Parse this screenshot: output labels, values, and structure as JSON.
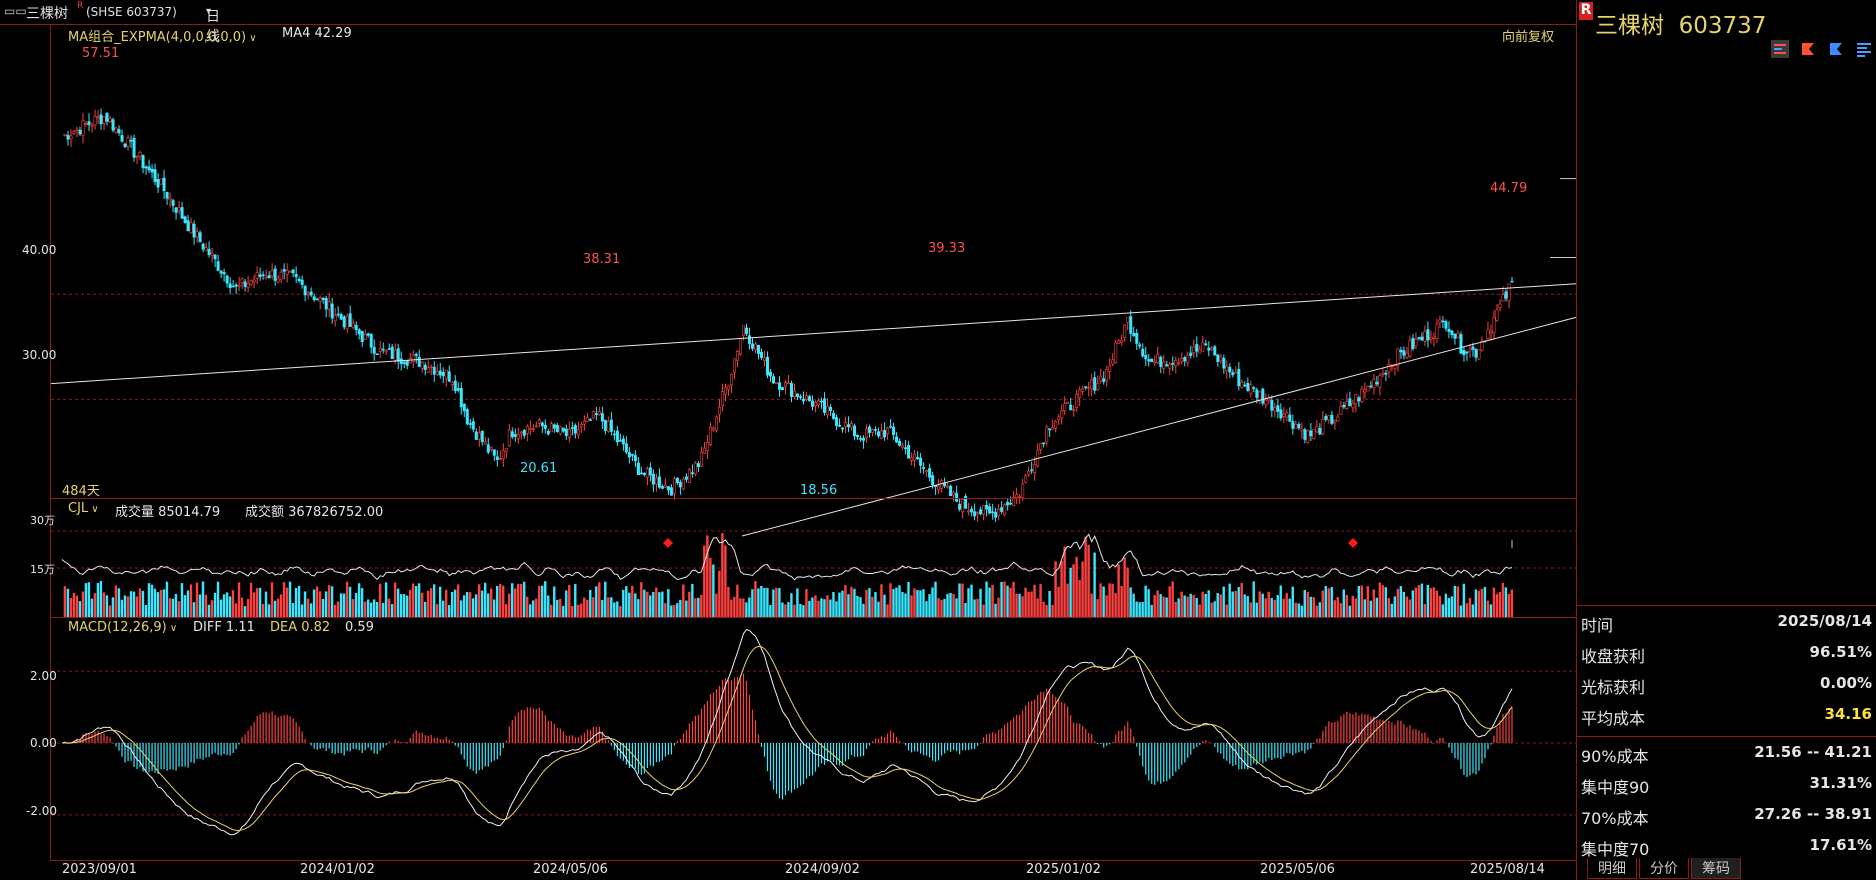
{
  "topbar": {
    "icon": "link-icon",
    "stock_name": "三棵树",
    "superscript": "R",
    "market_code": "(SHSE 603737)",
    "period": "日线"
  },
  "main": {
    "indicator_label": "MA组合_EXPMA(4,0,0,0,0,0)",
    "ma4_label": "MA4 42.29",
    "adjust_label": "向前复权",
    "days_label": "484天",
    "y_ticks": [
      "40.00",
      "30.00"
    ],
    "annotations": {
      "max": "57.51",
      "p1": "38.31",
      "p2": "39.33",
      "p3": "44.79",
      "low1": "20.61",
      "low2": "18.56"
    }
  },
  "volume": {
    "label": "CJL",
    "vol_label": "成交量 85014.79",
    "amount_label": "成交额 367826752.00",
    "y_ticks": [
      "30万",
      "15万"
    ]
  },
  "macd": {
    "label": "MACD(12,26,9)",
    "diff_label": "DIFF 1.11",
    "dea_label": "DEA 0.82",
    "macd_value": "0.59",
    "y_ticks": [
      "2.00",
      "0.00",
      "-2.00"
    ]
  },
  "x_axis": {
    "dates": [
      "2023/09/01",
      "2024/01/02",
      "2024/05/06",
      "2024/09/02",
      "2025/01/02",
      "2025/05/06",
      "2025/08/14"
    ]
  },
  "right_panel": {
    "superscript": "R",
    "title": "三棵树  603737",
    "stats": [
      {
        "k": "时间",
        "v": "2025/08/14"
      },
      {
        "k": "收盘获利",
        "v": "96.51%"
      },
      {
        "k": "光标获利",
        "v": "0.00%"
      },
      {
        "k": "平均成本",
        "v": "34.16"
      },
      {
        "k": "90%成本",
        "v": "21.56 -- 41.21"
      },
      {
        "k": "集中度90",
        "v": "31.31%"
      },
      {
        "k": "70%成本",
        "v": "27.26 -- 38.91"
      },
      {
        "k": "集中度70",
        "v": "17.61%"
      }
    ],
    "tabs": [
      "明细",
      "分价",
      "筹码"
    ]
  },
  "colors": {
    "up": "#ff4040",
    "down": "#38e8ff",
    "accent_yellow": "#e6d36b",
    "grid": "#8b1a1a"
  },
  "chart_data": {
    "type": "candlestick",
    "title": "三棵树 (SHSE 603737) 日线",
    "x_range": [
      "2023/09/01",
      "2025/08/14"
    ],
    "price_ylim": [
      17,
      60
    ],
    "close_keypoints": [
      {
        "t": 0.0,
        "v": 55.0
      },
      {
        "t": 0.03,
        "v": 57.0
      },
      {
        "t": 0.07,
        "v": 50.0
      },
      {
        "t": 0.09,
        "v": 46.0
      },
      {
        "t": 0.12,
        "v": 40.5
      },
      {
        "t": 0.14,
        "v": 42.0
      },
      {
        "t": 0.16,
        "v": 41.5
      },
      {
        "t": 0.19,
        "v": 38.0
      },
      {
        "t": 0.22,
        "v": 34.5
      },
      {
        "t": 0.25,
        "v": 33.5
      },
      {
        "t": 0.27,
        "v": 32.0
      },
      {
        "t": 0.28,
        "v": 28.0
      },
      {
        "t": 0.3,
        "v": 24.0
      },
      {
        "t": 0.31,
        "v": 27.0
      },
      {
        "t": 0.33,
        "v": 27.5
      },
      {
        "t": 0.35,
        "v": 26.5
      },
      {
        "t": 0.37,
        "v": 28.5
      },
      {
        "t": 0.4,
        "v": 23.0
      },
      {
        "t": 0.42,
        "v": 21.5
      },
      {
        "t": 0.44,
        "v": 24.0
      },
      {
        "t": 0.46,
        "v": 32.0
      },
      {
        "t": 0.47,
        "v": 37.0
      },
      {
        "t": 0.49,
        "v": 32.0
      },
      {
        "t": 0.52,
        "v": 29.5
      },
      {
        "t": 0.55,
        "v": 26.5
      },
      {
        "t": 0.57,
        "v": 27.0
      },
      {
        "t": 0.6,
        "v": 22.5
      },
      {
        "t": 0.62,
        "v": 20.0
      },
      {
        "t": 0.64,
        "v": 19.0
      },
      {
        "t": 0.66,
        "v": 21.0
      },
      {
        "t": 0.68,
        "v": 27.5
      },
      {
        "t": 0.7,
        "v": 30.0
      },
      {
        "t": 0.72,
        "v": 32.5
      },
      {
        "t": 0.735,
        "v": 37.5
      },
      {
        "t": 0.75,
        "v": 33.5
      },
      {
        "t": 0.77,
        "v": 34.0
      },
      {
        "t": 0.79,
        "v": 35.0
      },
      {
        "t": 0.81,
        "v": 32.0
      },
      {
        "t": 0.84,
        "v": 29.0
      },
      {
        "t": 0.86,
        "v": 26.5
      },
      {
        "t": 0.88,
        "v": 28.5
      },
      {
        "t": 0.9,
        "v": 31.0
      },
      {
        "t": 0.92,
        "v": 34.0
      },
      {
        "t": 0.94,
        "v": 36.0
      },
      {
        "t": 0.955,
        "v": 37.5
      },
      {
        "t": 0.965,
        "v": 35.0
      },
      {
        "t": 0.975,
        "v": 34.5
      },
      {
        "t": 0.985,
        "v": 37.0
      },
      {
        "t": 1.0,
        "v": 41.0
      }
    ],
    "annotated_prices": {
      "max": 57.51,
      "peak_2024_05": 38.31,
      "peak_2024_10": 39.33,
      "last_high": 44.79,
      "low_2024_04": 20.61,
      "low_2024_09": 18.56
    },
    "volume_ylim": [
      0,
      300000
    ],
    "macd_ylim": [
      -3.2,
      3.2
    ],
    "legend": [
      "MA4 42.29",
      "DIFF 1.11",
      "DEA 0.82",
      "MACD 0.59"
    ]
  }
}
